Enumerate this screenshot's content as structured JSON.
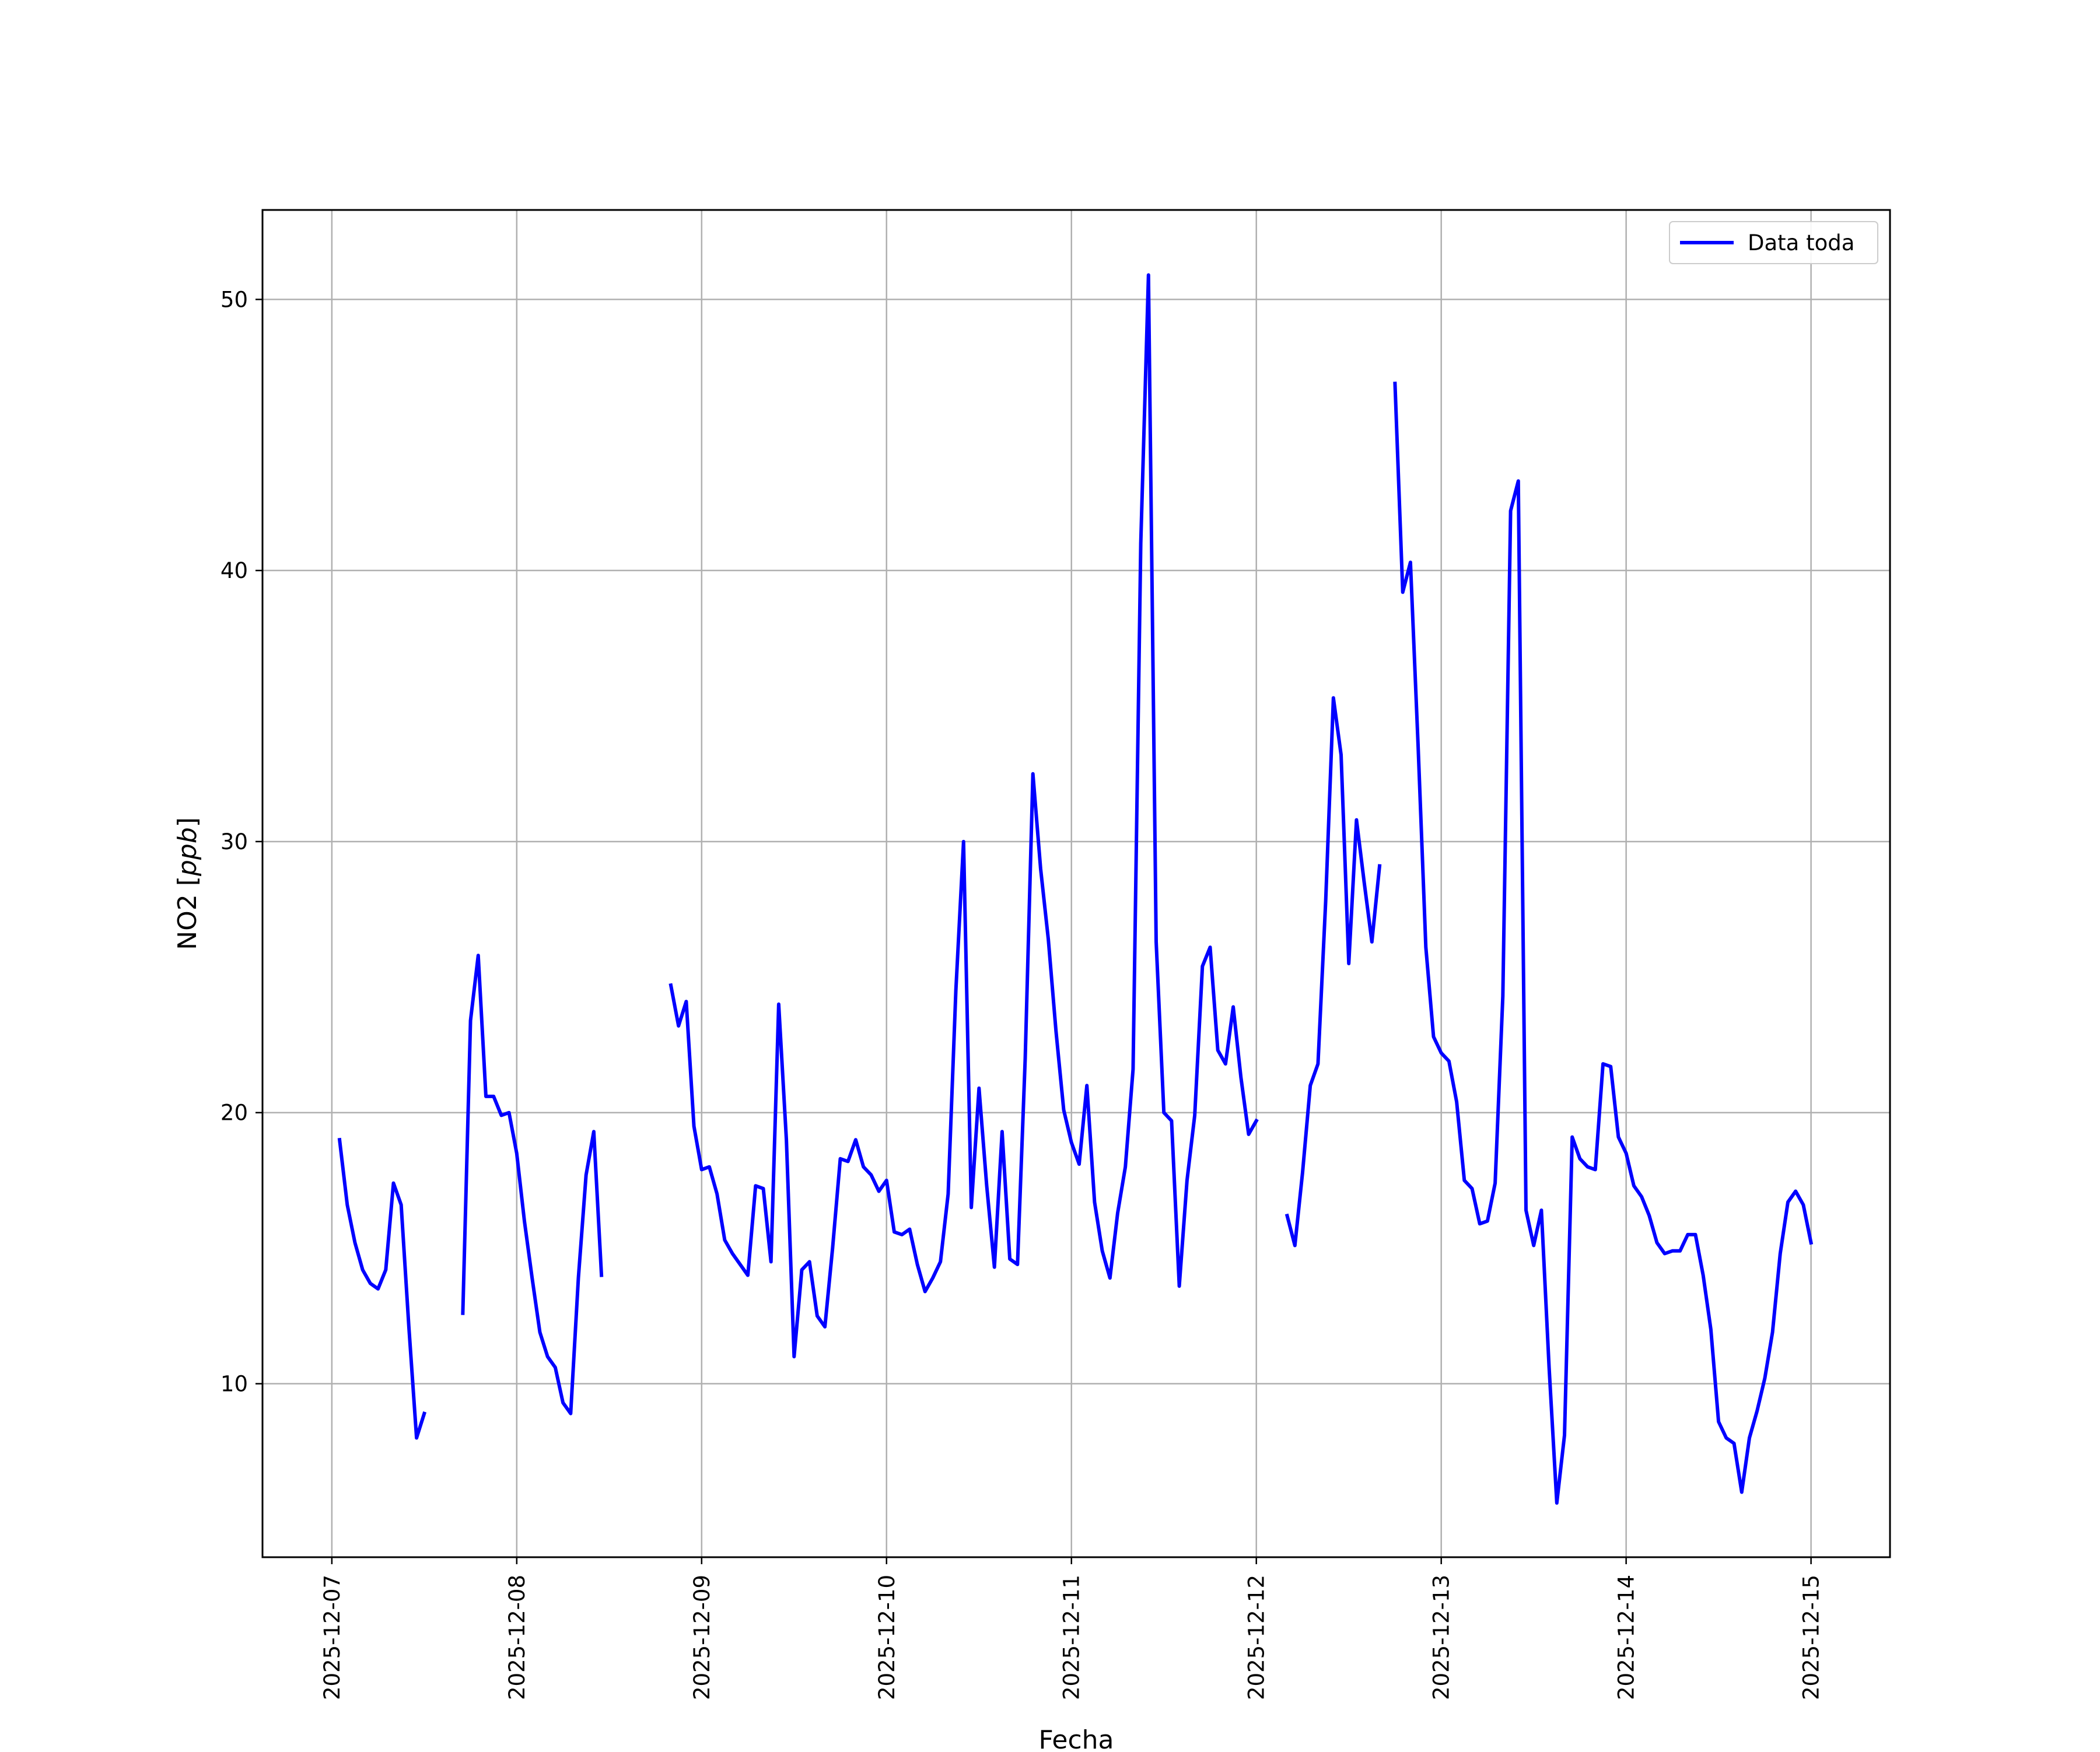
{
  "chart_data": {
    "type": "line",
    "title": "",
    "xlabel": "Fecha",
    "ylabel": "NO2 [",
    "ylabel_unit": "ppb",
    "ylabel_close": "]",
    "x_tick_labels": [
      "2025-12-07",
      "2025-12-08",
      "2025-12-09",
      "2025-12-10",
      "2025-12-11",
      "2025-12-12",
      "2025-12-13",
      "2025-12-14",
      "2025-12-15"
    ],
    "y_tick_labels": [
      "10",
      "20",
      "30",
      "40",
      "50"
    ],
    "xlim": [
      "2025-12-06 15:00",
      "2025-12-15 10:15"
    ],
    "ylim": [
      3.6,
      53.3
    ],
    "grid": true,
    "legend_position": "top-right",
    "colors": {
      "series": "#0000ff",
      "grid": "#b0b0b0",
      "frame": "#000000"
    },
    "series": [
      {
        "name": "Data toda",
        "segments": [
          [
            [
              "2025-12-07 01:00",
              19.0
            ],
            [
              "2025-12-07 02:00",
              16.6
            ],
            [
              "2025-12-07 03:00",
              15.2
            ],
            [
              "2025-12-07 04:00",
              14.2
            ],
            [
              "2025-12-07 05:00",
              13.7
            ],
            [
              "2025-12-07 06:00",
              13.5
            ],
            [
              "2025-12-07 07:00",
              14.2
            ],
            [
              "2025-12-07 08:00",
              17.4
            ],
            [
              "2025-12-07 09:00",
              16.6
            ],
            [
              "2025-12-07 10:00",
              12.1
            ],
            [
              "2025-12-07 11:00",
              8.0
            ],
            [
              "2025-12-07 12:00",
              8.9
            ]
          ],
          [
            [
              "2025-12-07 17:00",
              12.6
            ],
            [
              "2025-12-07 18:00",
              23.4
            ],
            [
              "2025-12-07 19:00",
              25.8
            ],
            [
              "2025-12-07 20:00",
              20.6
            ],
            [
              "2025-12-07 21:00",
              20.6
            ],
            [
              "2025-12-07 22:00",
              19.9
            ],
            [
              "2025-12-07 23:00",
              20.0
            ],
            [
              "2025-12-08 00:00",
              18.5
            ],
            [
              "2025-12-08 01:00",
              16.0
            ],
            [
              "2025-12-08 02:00",
              13.9
            ],
            [
              "2025-12-08 03:00",
              11.9
            ],
            [
              "2025-12-08 04:00",
              11.0
            ],
            [
              "2025-12-08 05:00",
              10.6
            ],
            [
              "2025-12-08 06:00",
              9.3
            ],
            [
              "2025-12-08 07:00",
              8.9
            ],
            [
              "2025-12-08 08:00",
              13.9
            ],
            [
              "2025-12-08 09:00",
              17.7
            ],
            [
              "2025-12-08 10:00",
              19.3
            ],
            [
              "2025-12-08 11:00",
              14.0
            ]
          ],
          [
            [
              "2025-12-08 20:00",
              24.7
            ],
            [
              "2025-12-08 21:00",
              23.2
            ],
            [
              "2025-12-08 22:00",
              24.1
            ],
            [
              "2025-12-08 23:00",
              19.5
            ],
            [
              "2025-12-09 00:00",
              17.9
            ],
            [
              "2025-12-09 01:00",
              18.0
            ],
            [
              "2025-12-09 02:00",
              17.0
            ],
            [
              "2025-12-09 03:00",
              15.3
            ],
            [
              "2025-12-09 04:00",
              14.8
            ],
            [
              "2025-12-09 05:00",
              14.4
            ],
            [
              "2025-12-09 06:00",
              14.0
            ],
            [
              "2025-12-09 07:00",
              17.3
            ],
            [
              "2025-12-09 08:00",
              17.2
            ],
            [
              "2025-12-09 09:00",
              14.5
            ],
            [
              "2025-12-09 10:00",
              24.0
            ],
            [
              "2025-12-09 11:00",
              19.0
            ],
            [
              "2025-12-09 12:00",
              11.0
            ],
            [
              "2025-12-09 13:00",
              14.2
            ],
            [
              "2025-12-09 14:00",
              14.5
            ],
            [
              "2025-12-09 15:00",
              12.5
            ],
            [
              "2025-12-09 16:00",
              12.1
            ],
            [
              "2025-12-09 17:00",
              15.0
            ],
            [
              "2025-12-09 18:00",
              18.3
            ],
            [
              "2025-12-09 19:00",
              18.2
            ],
            [
              "2025-12-09 20:00",
              19.0
            ],
            [
              "2025-12-09 21:00",
              18.0
            ],
            [
              "2025-12-09 22:00",
              17.7
            ],
            [
              "2025-12-09 23:00",
              17.1
            ],
            [
              "2025-12-10 00:00",
              17.5
            ],
            [
              "2025-12-10 01:00",
              15.6
            ],
            [
              "2025-12-10 02:00",
              15.5
            ],
            [
              "2025-12-10 03:00",
              15.7
            ],
            [
              "2025-12-10 04:00",
              14.4
            ],
            [
              "2025-12-10 05:00",
              13.4
            ],
            [
              "2025-12-10 06:00",
              13.9
            ],
            [
              "2025-12-10 07:00",
              14.5
            ],
            [
              "2025-12-10 08:00",
              17.0
            ],
            [
              "2025-12-10 09:00",
              24.5
            ],
            [
              "2025-12-10 10:00",
              30.0
            ],
            [
              "2025-12-10 11:00",
              16.5
            ],
            [
              "2025-12-10 12:00",
              20.9
            ],
            [
              "2025-12-10 13:00",
              17.3
            ],
            [
              "2025-12-10 14:00",
              14.3
            ],
            [
              "2025-12-10 15:00",
              19.3
            ],
            [
              "2025-12-10 16:00",
              14.6
            ],
            [
              "2025-12-10 17:00",
              14.4
            ],
            [
              "2025-12-10 18:00",
              22.0
            ],
            [
              "2025-12-10 19:00",
              32.5
            ],
            [
              "2025-12-10 20:00",
              29.0
            ],
            [
              "2025-12-10 21:00",
              26.4
            ],
            [
              "2025-12-10 22:00",
              23.0
            ],
            [
              "2025-12-10 23:00",
              20.1
            ],
            [
              "2025-12-11 00:00",
              18.9
            ],
            [
              "2025-12-11 01:00",
              18.1
            ],
            [
              "2025-12-11 02:00",
              21.0
            ],
            [
              "2025-12-11 03:00",
              16.7
            ],
            [
              "2025-12-11 04:00",
              14.9
            ],
            [
              "2025-12-11 05:00",
              13.9
            ],
            [
              "2025-12-11 06:00",
              16.3
            ],
            [
              "2025-12-11 07:00",
              18.0
            ],
            [
              "2025-12-11 08:00",
              21.6
            ],
            [
              "2025-12-11 09:00",
              41.0
            ],
            [
              "2025-12-11 10:00",
              50.9
            ],
            [
              "2025-12-11 11:00",
              26.3
            ],
            [
              "2025-12-11 12:00",
              20.0
            ],
            [
              "2025-12-11 13:00",
              19.7
            ],
            [
              "2025-12-11 14:00",
              13.6
            ],
            [
              "2025-12-11 15:00",
              17.5
            ],
            [
              "2025-12-11 16:00",
              19.9
            ],
            [
              "2025-12-11 17:00",
              25.4
            ],
            [
              "2025-12-11 18:00",
              26.1
            ],
            [
              "2025-12-11 19:00",
              22.3
            ],
            [
              "2025-12-11 20:00",
              21.8
            ],
            [
              "2025-12-11 21:00",
              23.9
            ],
            [
              "2025-12-11 22:00",
              21.3
            ],
            [
              "2025-12-11 23:00",
              19.2
            ],
            [
              "2025-12-12 00:00",
              19.7
            ]
          ],
          [
            [
              "2025-12-12 04:00",
              16.2
            ],
            [
              "2025-12-12 05:00",
              15.1
            ],
            [
              "2025-12-12 06:00",
              17.8
            ],
            [
              "2025-12-12 07:00",
              21.0
            ],
            [
              "2025-12-12 08:00",
              21.8
            ],
            [
              "2025-12-12 09:00",
              27.8
            ],
            [
              "2025-12-12 10:00",
              35.3
            ],
            [
              "2025-12-12 11:00",
              33.2
            ],
            [
              "2025-12-12 12:00",
              25.5
            ],
            [
              "2025-12-12 13:00",
              30.8
            ],
            [
              "2025-12-12 14:00",
              28.5
            ],
            [
              "2025-12-12 15:00",
              26.3
            ],
            [
              "2025-12-12 16:00",
              29.1
            ]
          ],
          [
            [
              "2025-12-12 18:00",
              46.9
            ],
            [
              "2025-12-12 19:00",
              39.2
            ],
            [
              "2025-12-12 20:00",
              40.3
            ],
            [
              "2025-12-12 21:00",
              33.5
            ],
            [
              "2025-12-12 22:00",
              26.1
            ],
            [
              "2025-12-12 23:00",
              22.8
            ],
            [
              "2025-12-13 00:00",
              22.2
            ],
            [
              "2025-12-13 01:00",
              21.9
            ],
            [
              "2025-12-13 02:00",
              20.4
            ],
            [
              "2025-12-13 03:00",
              17.5
            ],
            [
              "2025-12-13 04:00",
              17.2
            ],
            [
              "2025-12-13 05:00",
              15.9
            ],
            [
              "2025-12-13 06:00",
              16.0
            ],
            [
              "2025-12-13 07:00",
              17.4
            ],
            [
              "2025-12-13 08:00",
              24.3
            ],
            [
              "2025-12-13 09:00",
              42.2
            ],
            [
              "2025-12-13 10:00",
              43.3
            ],
            [
              "2025-12-13 11:00",
              16.4
            ],
            [
              "2025-12-13 12:00",
              15.1
            ],
            [
              "2025-12-13 13:00",
              16.4
            ],
            [
              "2025-12-13 14:00",
              10.6
            ],
            [
              "2025-12-13 15:00",
              5.6
            ],
            [
              "2025-12-13 16:00",
              8.1
            ],
            [
              "2025-12-13 17:00",
              19.1
            ],
            [
              "2025-12-13 18:00",
              18.3
            ],
            [
              "2025-12-13 19:00",
              18.0
            ],
            [
              "2025-12-13 20:00",
              17.9
            ],
            [
              "2025-12-13 21:00",
              21.8
            ],
            [
              "2025-12-13 22:00",
              21.7
            ],
            [
              "2025-12-13 23:00",
              19.1
            ],
            [
              "2025-12-14 00:00",
              18.5
            ],
            [
              "2025-12-14 01:00",
              17.3
            ],
            [
              "2025-12-14 02:00",
              16.9
            ],
            [
              "2025-12-14 03:00",
              16.2
            ],
            [
              "2025-12-14 04:00",
              15.2
            ],
            [
              "2025-12-14 05:00",
              14.8
            ],
            [
              "2025-12-14 06:00",
              14.9
            ],
            [
              "2025-12-14 07:00",
              14.9
            ],
            [
              "2025-12-14 08:00",
              15.5
            ],
            [
              "2025-12-14 09:00",
              15.5
            ],
            [
              "2025-12-14 10:00",
              14.0
            ],
            [
              "2025-12-14 11:00",
              12.0
            ],
            [
              "2025-12-14 12:00",
              8.6
            ],
            [
              "2025-12-14 13:00",
              8.0
            ],
            [
              "2025-12-14 14:00",
              7.8
            ],
            [
              "2025-12-14 15:00",
              6.0
            ],
            [
              "2025-12-14 16:00",
              8.0
            ],
            [
              "2025-12-14 17:00",
              9.0
            ],
            [
              "2025-12-14 18:00",
              10.2
            ],
            [
              "2025-12-14 19:00",
              11.9
            ],
            [
              "2025-12-14 20:00",
              14.8
            ],
            [
              "2025-12-14 21:00",
              16.7
            ],
            [
              "2025-12-14 22:00",
              17.1
            ],
            [
              "2025-12-14 23:00",
              16.6
            ],
            [
              "2025-12-15 00:00",
              15.2
            ]
          ]
        ]
      }
    ]
  }
}
